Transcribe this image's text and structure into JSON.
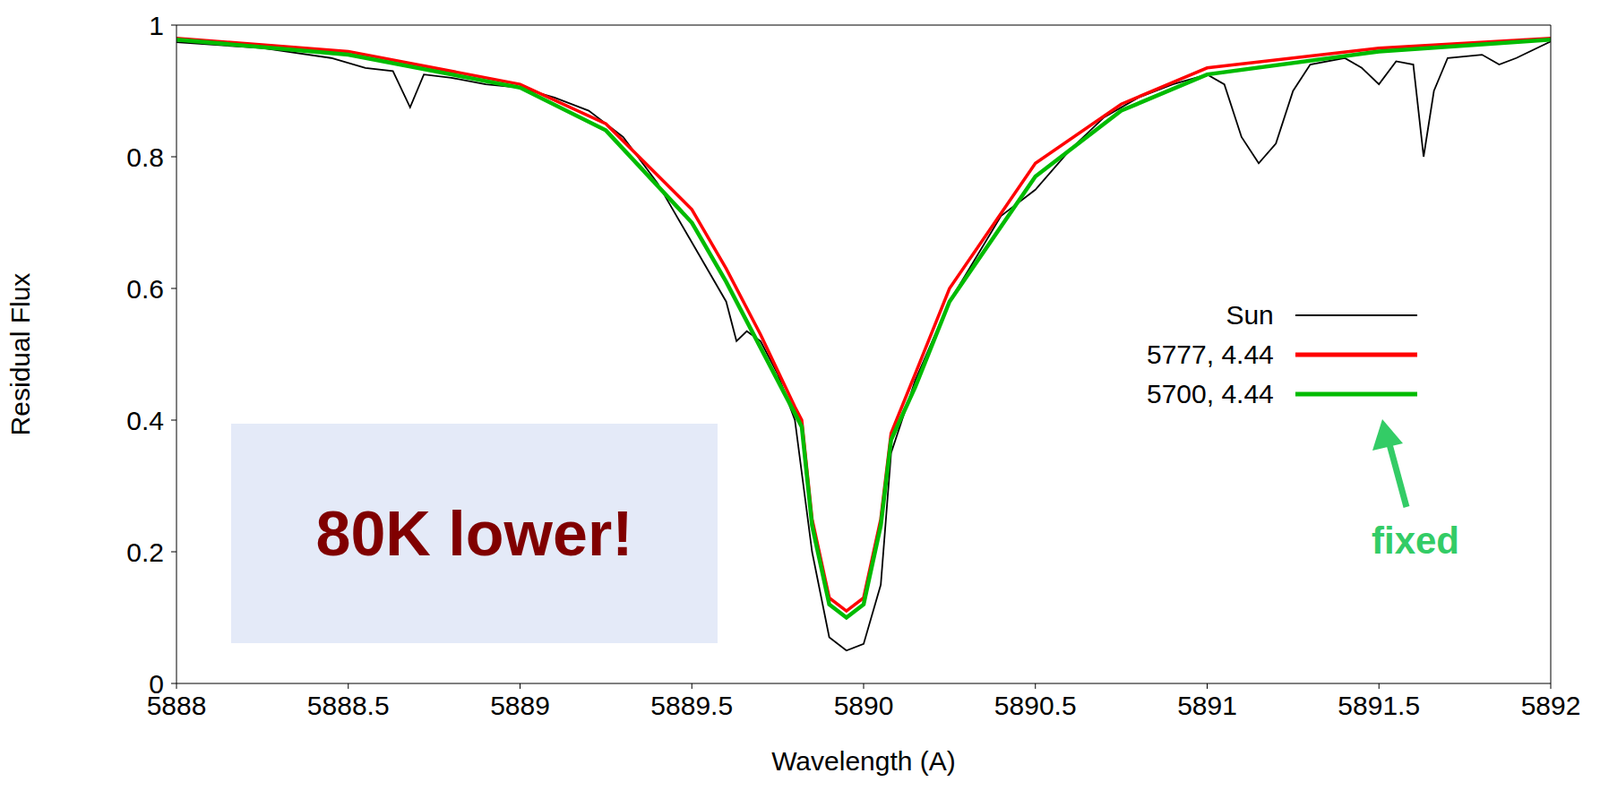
{
  "chart_data": {
    "type": "line",
    "x_label": "Wavelength (A)",
    "y_label": "Residual Flux",
    "xlim": [
      5888,
      5892
    ],
    "xticks": [
      5888,
      5888.5,
      5889,
      5889.5,
      5890,
      5890.5,
      5891,
      5891.5,
      5892
    ],
    "ylim": [
      0,
      1
    ],
    "yticks": [
      0,
      0.2,
      0.4,
      0.6,
      0.8,
      1
    ],
    "grid": false,
    "legend": "right",
    "annotations": [
      "80K lower!",
      "fixed"
    ],
    "series": [
      {
        "name": "Sun",
        "color": "#000000",
        "x": [
          5888.0,
          5888.25,
          5888.45,
          5888.55,
          5888.63,
          5888.68,
          5888.72,
          5888.8,
          5888.9,
          5889.0,
          5889.1,
          5889.2,
          5889.3,
          5889.4,
          5889.5,
          5889.6,
          5889.63,
          5889.66,
          5889.7,
          5889.75,
          5889.8,
          5889.85,
          5889.9,
          5889.95,
          5890.0,
          5890.05,
          5890.08,
          5890.15,
          5890.25,
          5890.4,
          5890.5,
          5890.6,
          5890.7,
          5890.8,
          5890.9,
          5891.0,
          5891.05,
          5891.1,
          5891.15,
          5891.2,
          5891.25,
          5891.3,
          5891.4,
          5891.45,
          5891.5,
          5891.55,
          5891.6,
          5891.63,
          5891.66,
          5891.7,
          5891.8,
          5891.85,
          5891.9,
          5892.0
        ],
        "values": [
          0.974,
          0.965,
          0.95,
          0.935,
          0.93,
          0.875,
          0.925,
          0.92,
          0.91,
          0.905,
          0.89,
          0.87,
          0.83,
          0.76,
          0.67,
          0.58,
          0.52,
          0.535,
          0.52,
          0.47,
          0.4,
          0.2,
          0.07,
          0.05,
          0.06,
          0.15,
          0.35,
          0.46,
          0.58,
          0.71,
          0.75,
          0.81,
          0.86,
          0.89,
          0.91,
          0.925,
          0.91,
          0.83,
          0.79,
          0.82,
          0.9,
          0.94,
          0.95,
          0.935,
          0.91,
          0.945,
          0.94,
          0.8,
          0.9,
          0.95,
          0.955,
          0.94,
          0.95,
          0.975
        ]
      },
      {
        "name": "5777, 4.44",
        "color": "#ff0000",
        "x": [
          5888.0,
          5888.5,
          5889.0,
          5889.25,
          5889.5,
          5889.6,
          5889.7,
          5889.8,
          5889.82,
          5889.85,
          5889.9,
          5889.95,
          5890.0,
          5890.05,
          5890.08,
          5890.15,
          5890.25,
          5890.5,
          5890.75,
          5891.0,
          5891.5,
          5892.0
        ],
        "values": [
          0.98,
          0.96,
          0.91,
          0.85,
          0.72,
          0.63,
          0.53,
          0.42,
          0.4,
          0.25,
          0.13,
          0.11,
          0.13,
          0.25,
          0.38,
          0.47,
          0.6,
          0.79,
          0.88,
          0.935,
          0.965,
          0.98
        ]
      },
      {
        "name": "5700, 4.44",
        "color": "#00bb00",
        "x": [
          5888.0,
          5888.5,
          5889.0,
          5889.25,
          5889.5,
          5889.6,
          5889.7,
          5889.8,
          5889.82,
          5889.85,
          5889.9,
          5889.95,
          5890.0,
          5890.05,
          5890.08,
          5890.15,
          5890.25,
          5890.5,
          5890.75,
          5891.0,
          5891.5,
          5892.0
        ],
        "values": [
          0.978,
          0.955,
          0.905,
          0.84,
          0.7,
          0.61,
          0.51,
          0.41,
          0.39,
          0.24,
          0.12,
          0.1,
          0.12,
          0.24,
          0.37,
          0.45,
          0.58,
          0.77,
          0.87,
          0.925,
          0.96,
          0.978
        ]
      }
    ]
  }
}
